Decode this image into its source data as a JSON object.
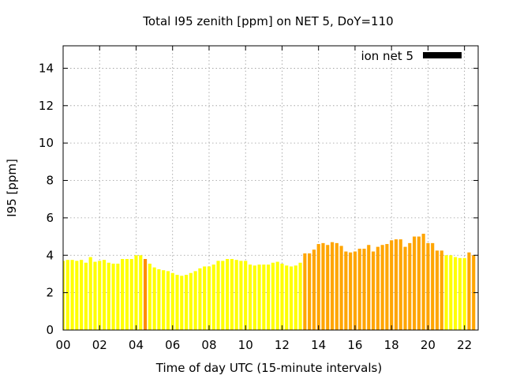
{
  "chart_data": {
    "type": "bar",
    "title": "Total I95 zenith [ppm] on NET 5, DoY=110",
    "xlabel": "Time of day UTC (15-minute intervals)",
    "ylabel": "I95 [ppm]",
    "xlim": [
      0,
      22.75
    ],
    "ylim": [
      0,
      15.2
    ],
    "x_ticks": [
      "00",
      "02",
      "04",
      "06",
      "08",
      "10",
      "12",
      "14",
      "16",
      "18",
      "20",
      "22"
    ],
    "x_tick_values": [
      0,
      2,
      4,
      6,
      8,
      10,
      12,
      14,
      16,
      18,
      20,
      22
    ],
    "y_ticks": [
      0,
      2,
      4,
      6,
      8,
      10,
      12,
      14
    ],
    "grid": true,
    "legend": {
      "position": "top-right",
      "label": "ion net 5",
      "swatch_color": "#000000"
    },
    "colors": {
      "yellow": "#ffff00",
      "orange": "#ffa500",
      "dark_orange": "#ff8c00"
    },
    "bar_interval_hours": 0.25,
    "series": [
      {
        "values": [
          3.7,
          3.75,
          3.75,
          3.7,
          3.75,
          3.6,
          3.9,
          3.65,
          3.7,
          3.75,
          3.6,
          3.55,
          3.55,
          3.8,
          3.8,
          3.8,
          4.0,
          4.0,
          3.8,
          3.55,
          3.35,
          3.25,
          3.2,
          3.15,
          3.05,
          2.95,
          2.9,
          2.95,
          3.05,
          3.15,
          3.3,
          3.4,
          3.4,
          3.5,
          3.7,
          3.7,
          3.8,
          3.8,
          3.75,
          3.7,
          3.7,
          3.5,
          3.45,
          3.5,
          3.5,
          3.5,
          3.6,
          3.65,
          3.55,
          3.45,
          3.4,
          3.45,
          3.6,
          4.1,
          4.1,
          4.3,
          4.6,
          4.65,
          4.55,
          4.7,
          4.65,
          4.5,
          4.2,
          4.15,
          4.2,
          4.35,
          4.35,
          4.55,
          4.2,
          4.45,
          4.55,
          4.6,
          4.8,
          4.85,
          4.85,
          4.45,
          4.65,
          5.0,
          5.0,
          5.15,
          4.65,
          4.65,
          4.25,
          4.25,
          4.0,
          4.0,
          3.9,
          3.85,
          3.85,
          4.15,
          4.0
        ],
        "colors": [
          "yellow",
          "yellow",
          "yellow",
          "yellow",
          "yellow",
          "yellow",
          "yellow",
          "yellow",
          "yellow",
          "yellow",
          "yellow",
          "yellow",
          "yellow",
          "yellow",
          "yellow",
          "yellow",
          "yellow",
          "yellow",
          "yellow",
          "yellow",
          "yellow",
          "yellow",
          "yellow",
          "yellow",
          "yellow",
          "yellow",
          "yellow",
          "yellow",
          "yellow",
          "yellow",
          "yellow",
          "yellow",
          "yellow",
          "yellow",
          "yellow",
          "yellow",
          "yellow",
          "yellow",
          "yellow",
          "yellow",
          "yellow",
          "yellow",
          "yellow",
          "yellow",
          "yellow",
          "yellow",
          "yellow",
          "yellow",
          "yellow",
          "yellow",
          "yellow",
          "yellow",
          "yellow",
          "orange",
          "orange",
          "orange",
          "orange",
          "orange",
          "orange",
          "orange",
          "orange",
          "orange",
          "orange",
          "orange",
          "orange",
          "orange",
          "orange",
          "orange",
          "orange",
          "orange",
          "orange",
          "orange",
          "orange",
          "orange",
          "orange",
          "orange",
          "orange",
          "orange",
          "orange",
          "orange",
          "orange",
          "orange",
          "orange",
          "orange",
          "yellow",
          "yellow",
          "yellow",
          "yellow",
          "yellow",
          "orange",
          "orange"
        ],
        "highlight_index": 18
      }
    ]
  }
}
